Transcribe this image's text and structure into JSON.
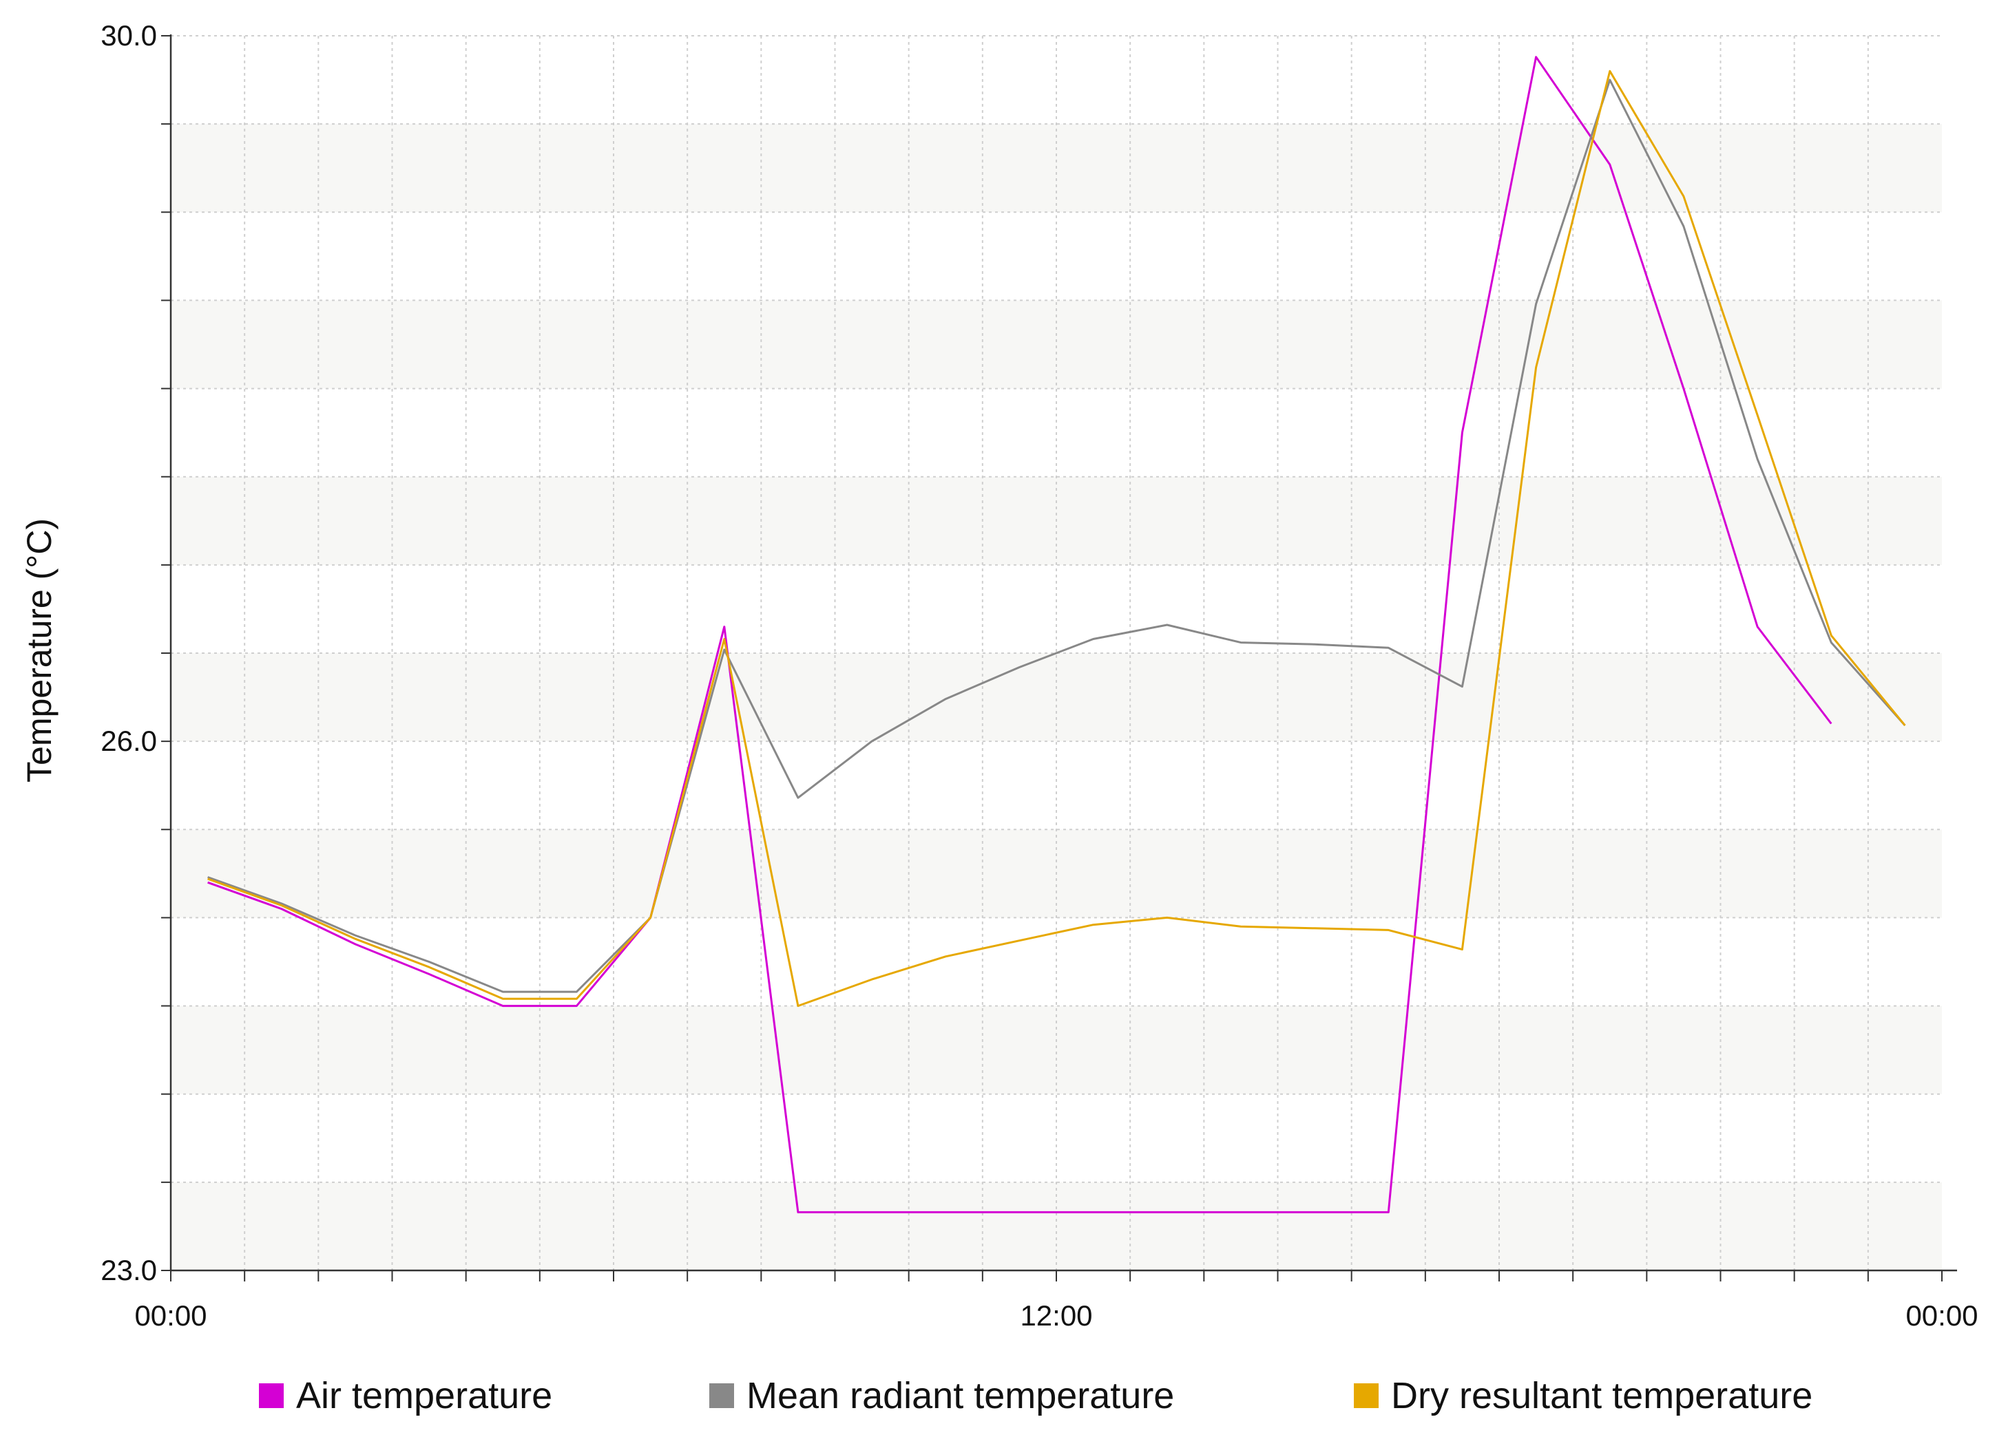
{
  "chart_data": {
    "type": "line",
    "title": "",
    "xlabel": "",
    "ylabel": "Temperature (°C)",
    "x_unit": "hour of day",
    "xlim": [
      0,
      24
    ],
    "ylim": [
      23.0,
      30.0
    ],
    "x_ticks": [
      {
        "value": 0,
        "label": "00:00"
      },
      {
        "value": 12,
        "label": "12:00"
      },
      {
        "value": 24,
        "label": "00:00"
      }
    ],
    "y_ticks": [
      {
        "value": 23.0,
        "label": "23.0"
      },
      {
        "value": 26.0,
        "label": "26.0"
      },
      {
        "value": 30.0,
        "label": "30.0"
      }
    ],
    "grid": true,
    "legend_position": "bottom",
    "x": [
      0.5,
      1.5,
      2.5,
      3.5,
      4.5,
      5.5,
      6.5,
      7.5,
      8.5,
      9.5,
      10.5,
      11.5,
      12.5,
      13.5,
      14.5,
      15.5,
      16.5,
      17.5,
      18.5,
      19.5,
      20.5,
      21.5,
      22.5,
      23.5
    ],
    "series": [
      {
        "name": "Air temperature",
        "color": "#d400d4",
        "values": [
          25.2,
          25.05,
          24.85,
          24.68,
          24.5,
          24.5,
          25.0,
          26.65,
          23.33,
          23.33,
          23.33,
          23.33,
          23.33,
          23.33,
          23.33,
          23.33,
          23.33,
          27.75,
          29.88,
          29.27,
          28.0,
          26.65,
          26.1,
          null
        ]
      },
      {
        "name": "Mean radiant temperature",
        "color": "#888888",
        "values": [
          25.23,
          25.08,
          24.9,
          24.75,
          24.58,
          24.58,
          25.0,
          26.52,
          25.68,
          26.0,
          26.24,
          26.42,
          26.58,
          26.66,
          26.56,
          26.55,
          26.53,
          26.31,
          28.48,
          29.75,
          28.92,
          27.6,
          26.56,
          26.09
        ]
      },
      {
        "name": "Dry resultant temperature",
        "color": "#e6a800",
        "values": [
          25.22,
          25.07,
          24.88,
          24.72,
          24.54,
          24.54,
          25.0,
          26.58,
          24.5,
          24.65,
          24.78,
          24.87,
          24.96,
          25.0,
          24.95,
          24.94,
          24.93,
          24.82,
          28.12,
          29.8,
          29.09,
          27.85,
          26.6,
          26.09
        ]
      }
    ]
  }
}
